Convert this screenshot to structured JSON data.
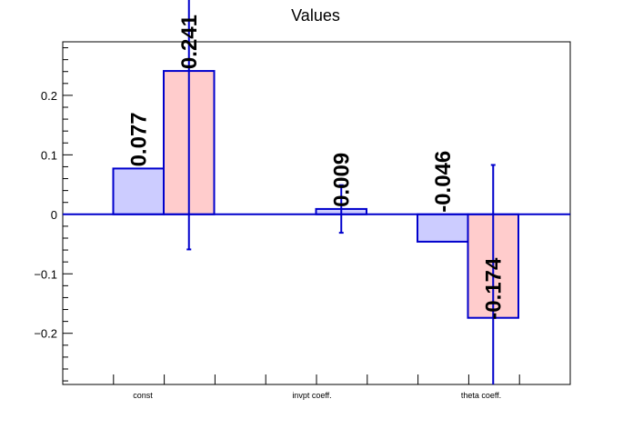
{
  "chart_data": {
    "type": "bar",
    "title": "Values",
    "xlabel": "",
    "ylabel": "",
    "categories": [
      "const",
      "invpt coeff.",
      "theta coeff."
    ],
    "series": [
      {
        "color": "#ccccff",
        "values": [
          0.077,
          0.009,
          -0.046
        ],
        "labels": [
          "0.077",
          "0.009",
          "-0.046"
        ],
        "errors": [
          null,
          0.04,
          null
        ]
      },
      {
        "color": "#ffcccc",
        "values": [
          0.241,
          null,
          -0.174
        ],
        "labels": [
          "0.241",
          "",
          "-0.174"
        ],
        "errors": [
          0.3,
          null,
          0.257
        ]
      }
    ],
    "edge_color": "#0000cc",
    "ylim": [
      -0.286,
      0.29
    ],
    "yticks": [
      -0.2,
      -0.1,
      0,
      0.1,
      0.2
    ],
    "ytick_labels": [
      "−0.2",
      "−0.1",
      "0",
      "0.1",
      "0.2"
    ],
    "grid": false,
    "legend": "none"
  }
}
